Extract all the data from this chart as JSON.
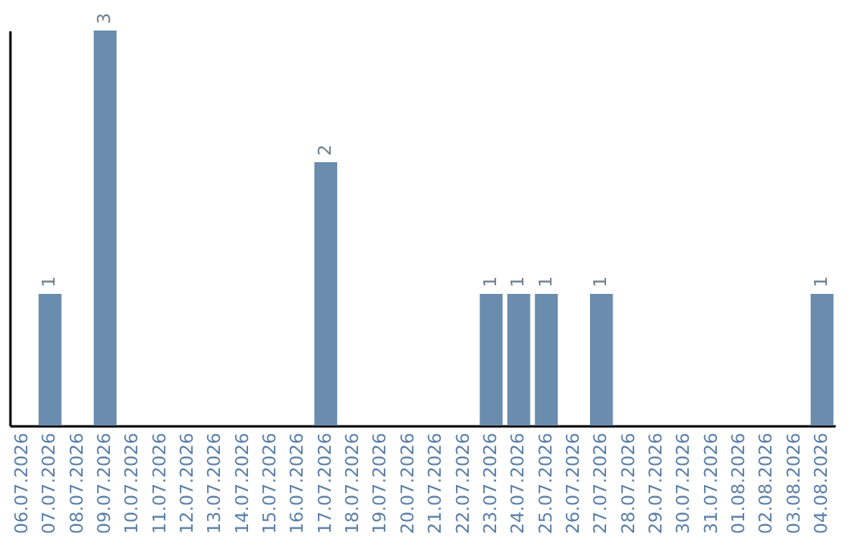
{
  "chart_data": {
    "type": "bar",
    "categories": [
      "06.07.2026",
      "07.07.2026",
      "08.07.2026",
      "09.07.2026",
      "10.07.2026",
      "11.07.2026",
      "12.07.2026",
      "13.07.2026",
      "14.07.2026",
      "15.07.2026",
      "16.07.2026",
      "17.07.2026",
      "18.07.2026",
      "19.07.2026",
      "20.07.2026",
      "21.07.2026",
      "22.07.2026",
      "23.07.2026",
      "24.07.2026",
      "25.07.2026",
      "26.07.2026",
      "27.07.2026",
      "28.07.2026",
      "29.07.2026",
      "30.07.2026",
      "31.07.2026",
      "01.08.2026",
      "02.08.2026",
      "03.08.2026",
      "04.08.2026"
    ],
    "values": [
      0,
      1,
      0,
      3,
      0,
      0,
      0,
      0,
      0,
      0,
      0,
      2,
      0,
      0,
      0,
      0,
      0,
      1,
      1,
      1,
      0,
      1,
      0,
      0,
      0,
      0,
      0,
      0,
      0,
      1
    ],
    "value_labels": [
      null,
      "1",
      null,
      "3",
      null,
      null,
      null,
      null,
      null,
      null,
      null,
      "2",
      null,
      null,
      null,
      null,
      null,
      "1",
      "1",
      "1",
      null,
      "1",
      null,
      null,
      null,
      null,
      null,
      null,
      null,
      "1"
    ],
    "color": "#6a8caf",
    "tick_labels": "x"
  }
}
